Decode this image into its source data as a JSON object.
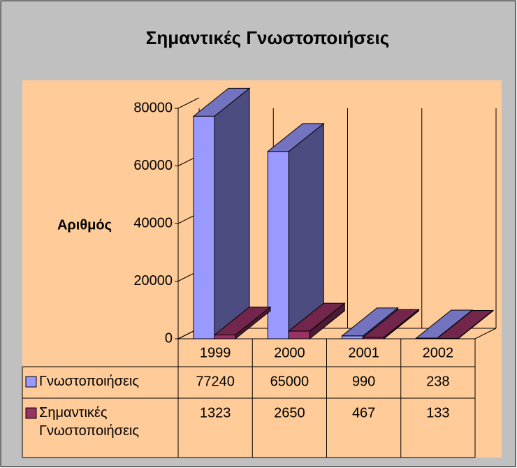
{
  "chart_data": {
    "type": "bar3d",
    "title": "Σημαντικές Γνωστοποιήσεις",
    "y_label": "Αριθμός",
    "categories": [
      "1999",
      "2000",
      "2001",
      "2002"
    ],
    "series": [
      {
        "name": "Γνωστοποιήσεις",
        "color": "#9999ff",
        "values": [
          77240,
          65000,
          990,
          238
        ]
      },
      {
        "name": "Σημαντικές Γνωστοποιήσεις",
        "color": "#993366",
        "values": [
          1323,
          2650,
          467,
          133
        ]
      }
    ],
    "ylim": [
      0,
      80000
    ],
    "yticks": [
      0,
      20000,
      40000,
      60000,
      80000
    ],
    "grid": true,
    "data_table": true
  }
}
